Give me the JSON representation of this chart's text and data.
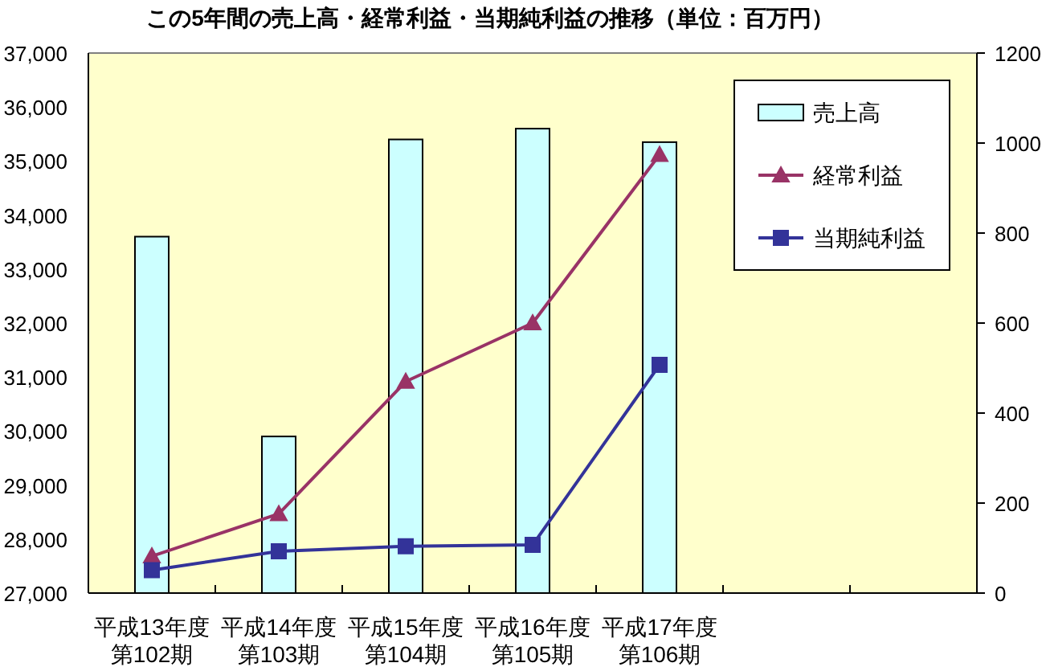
{
  "chart_data": {
    "type": "bar",
    "title": "この5年間の売上高・経常利益・当期純利益の推移（単位：百万円）",
    "categories": [
      "平成13年度第102期",
      "平成14年度第103期",
      "平成15年度第104期",
      "平成16年度第105期",
      "平成17年度第106期",
      null,
      null
    ],
    "series": [
      {
        "name": "売上高",
        "color": "#ccffff",
        "values": [
          33600,
          29900,
          35400,
          35600,
          35350,
          null,
          null
        ]
      },
      {
        "name": "経常利益",
        "type": "line",
        "axis": "y2",
        "marker": "triangle",
        "color": "#993366",
        "values": [
          82,
          176,
          470,
          600,
          974,
          null,
          null
        ]
      },
      {
        "name": "当期純利益",
        "type": "line",
        "axis": "y2",
        "marker": "square",
        "color": "#333399",
        "values": [
          51,
          93,
          104,
          107,
          507,
          null,
          null
        ]
      }
    ],
    "ylim": [
      27000,
      37000
    ],
    "yticks": [
      {
        "value": 27000,
        "label": "27,000"
      },
      {
        "value": 28000,
        "label": "28,000"
      },
      {
        "value": 29000,
        "label": "29,000"
      },
      {
        "value": 30000,
        "label": "30,000"
      },
      {
        "value": 31000,
        "label": "31,000"
      },
      {
        "value": 32000,
        "label": "32,000"
      },
      {
        "value": 33000,
        "label": "33,000"
      },
      {
        "value": 34000,
        "label": "34,000"
      },
      {
        "value": 35000,
        "label": "35,000"
      },
      {
        "value": 36000,
        "label": "36,000"
      },
      {
        "value": 37000,
        "label": "37,000"
      }
    ],
    "y2lim": [
      0,
      1200
    ],
    "y2ticks": [
      0,
      200,
      400,
      600,
      800,
      1000,
      1200
    ],
    "legend": "top right"
  }
}
